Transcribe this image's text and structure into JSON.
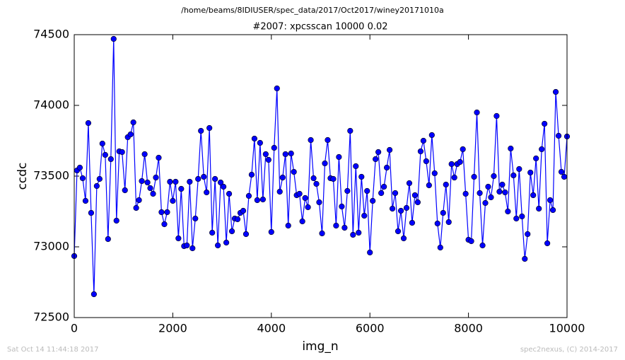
{
  "chart_data": {
    "type": "line",
    "suptitle": "/home/beams/8IDIUSER/spec_data/2017/Oct2017/winey20171010a",
    "title": "#2007: xpcsscan 10000 0.02",
    "xlabel": "img_n",
    "ylabel": "ccdc",
    "footer_left": "Sat Oct 14 11:44:18 2017",
    "footer_right": "spec2nexus, (C) 2014-2017",
    "xlim": [
      0,
      10000
    ],
    "xticks": [
      0,
      2000,
      4000,
      6000,
      8000,
      10000
    ],
    "ylim": [
      72500,
      74500
    ],
    "yticks": [
      72500,
      73000,
      73500,
      74000,
      74500
    ],
    "grid": false,
    "x": [
      0,
      57,
      114,
      171,
      229,
      286,
      343,
      400,
      457,
      514,
      571,
      629,
      686,
      743,
      800,
      857,
      914,
      971,
      1029,
      1086,
      1143,
      1200,
      1257,
      1314,
      1371,
      1429,
      1486,
      1543,
      1600,
      1657,
      1714,
      1771,
      1829,
      1886,
      1943,
      2000,
      2057,
      2114,
      2171,
      2229,
      2286,
      2343,
      2400,
      2457,
      2514,
      2571,
      2629,
      2686,
      2743,
      2800,
      2857,
      2914,
      2971,
      3029,
      3086,
      3143,
      3200,
      3257,
      3314,
      3371,
      3429,
      3486,
      3543,
      3600,
      3657,
      3714,
      3771,
      3829,
      3886,
      3943,
      4000,
      4057,
      4114,
      4171,
      4229,
      4286,
      4343,
      4400,
      4457,
      4514,
      4571,
      4629,
      4686,
      4743,
      4800,
      4857,
      4914,
      4971,
      5029,
      5086,
      5143,
      5200,
      5257,
      5314,
      5371,
      5429,
      5486,
      5543,
      5600,
      5657,
      5714,
      5771,
      5829,
      5886,
      5943,
      6000,
      6057,
      6114,
      6171,
      6229,
      6286,
      6343,
      6400,
      6457,
      6514,
      6571,
      6629,
      6686,
      6743,
      6800,
      6857,
      6914,
      6971,
      7029,
      7086,
      7143,
      7200,
      7257,
      7314,
      7371,
      7429,
      7486,
      7543,
      7600,
      7657,
      7714,
      7771,
      7829,
      7886,
      7943,
      8000,
      8057,
      8114,
      8171,
      8229,
      8286,
      8343,
      8400,
      8457,
      8514,
      8571,
      8629,
      8686,
      8743,
      8800,
      8857,
      8914,
      8971,
      9029,
      9086,
      9143,
      9200,
      9257,
      9314,
      9371,
      9429,
      9486,
      9543,
      9600,
      9657,
      9714,
      9771,
      9829,
      9886,
      9943,
      10000
    ],
    "series": [
      {
        "name": "ccdc",
        "color": "#0000ff",
        "values": [
          72935,
          73540,
          73560,
          73485,
          73325,
          73875,
          73240,
          72665,
          73430,
          73480,
          73730,
          73650,
          73055,
          73620,
          74470,
          73185,
          73675,
          73670,
          73400,
          73775,
          73795,
          73880,
          73275,
          73330,
          73465,
          73655,
          73455,
          73415,
          73375,
          73490,
          73630,
          73245,
          73160,
          73245,
          73460,
          73325,
          73460,
          73060,
          73410,
          73005,
          73010,
          73460,
          72990,
          73200,
          73480,
          73820,
          73495,
          73385,
          73840,
          73100,
          73480,
          73010,
          73455,
          73425,
          73030,
          73375,
          73110,
          73200,
          73195,
          73240,
          73255,
          73090,
          73360,
          73510,
          73765,
          73330,
          73735,
          73335,
          73655,
          73615,
          73105,
          73700,
          74120,
          73390,
          73490,
          73655,
          73150,
          73660,
          73530,
          73365,
          73375,
          73180,
          73345,
          73280,
          73755,
          73485,
          73445,
          73315,
          73095,
          73590,
          73755,
          73485,
          73480,
          73150,
          73635,
          73285,
          73135,
          73395,
          73820,
          73085,
          73570,
          73100,
          73495,
          73220,
          73395,
          72960,
          73325,
          73620,
          73670,
          73380,
          73425,
          73560,
          73685,
          73270,
          73380,
          73110,
          73255,
          73060,
          73275,
          73450,
          73170,
          73365,
          73315,
          73675,
          73750,
          73605,
          73435,
          73790,
          73520,
          73165,
          72995,
          73240,
          73440,
          73175,
          73585,
          73490,
          73585,
          73600,
          73690,
          73375,
          73050,
          73040,
          73495,
          73950,
          73380,
          73010,
          73310,
          73425,
          73350,
          73500,
          73925,
          73390,
          73440,
          73385,
          73250,
          73695,
          73505,
          73200,
          73550,
          73215,
          72915,
          73090,
          73525,
          73365,
          73625,
          73270,
          73690,
          73870,
          73025,
          73330,
          73260,
          74095,
          73785,
          73530,
          73495,
          73780
        ]
      }
    ]
  }
}
